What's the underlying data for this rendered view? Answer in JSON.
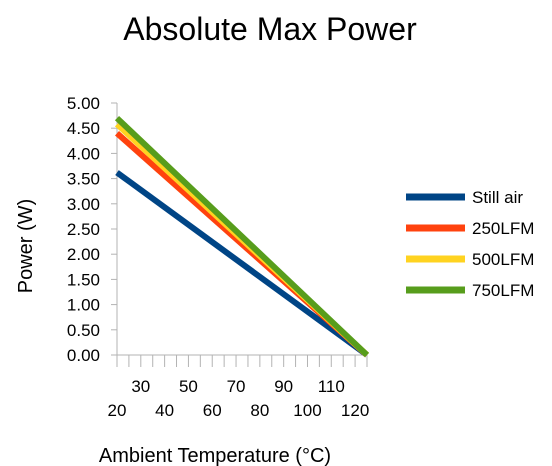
{
  "chart_data": {
    "type": "line",
    "title": "Absolute Max Power",
    "xlabel": "Ambient Temperature (°C)",
    "ylabel": "Power (W)",
    "xlim": [
      20,
      125
    ],
    "ylim": [
      0,
      5
    ],
    "x_ticks": [
      "20",
      "30",
      "40",
      "50",
      "60",
      "70",
      "80",
      "90",
      "100",
      "110",
      "120"
    ],
    "y_ticks": [
      "0.00",
      "0.50",
      "1.00",
      "1.50",
      "2.00",
      "2.50",
      "3.00",
      "3.50",
      "4.00",
      "4.50",
      "5.00"
    ],
    "grid": false,
    "legend_position": "right",
    "series": [
      {
        "name": "Still air",
        "color": "#004586",
        "x": [
          20,
          125
        ],
        "y": [
          3.62,
          0
        ]
      },
      {
        "name": "250LFM",
        "color": "#ff420e",
        "x": [
          20,
          125
        ],
        "y": [
          4.4,
          0
        ]
      },
      {
        "name": "500LFM",
        "color": "#ffd320",
        "x": [
          20,
          125
        ],
        "y": [
          4.58,
          0
        ]
      },
      {
        "name": "750LFM",
        "color": "#579d1c",
        "x": [
          20,
          125
        ],
        "y": [
          4.7,
          0
        ]
      }
    ]
  }
}
